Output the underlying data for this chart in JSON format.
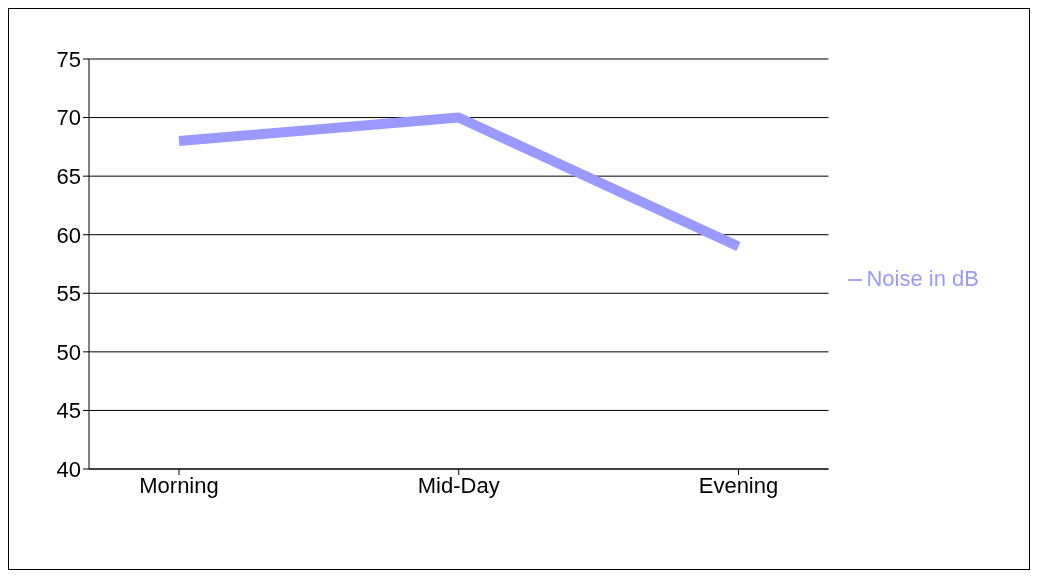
{
  "chart_data": {
    "type": "line",
    "categories": [
      "Morning",
      "Mid-Day",
      "Evening"
    ],
    "series": [
      {
        "name": "Noise in dB",
        "color": "#9999ff",
        "values": [
          68,
          70,
          59
        ]
      }
    ],
    "ylim": [
      40,
      75
    ],
    "yticks": [
      40,
      45,
      50,
      55,
      60,
      65,
      70,
      75
    ],
    "grid": "y",
    "legend": "right",
    "marker": "none"
  }
}
